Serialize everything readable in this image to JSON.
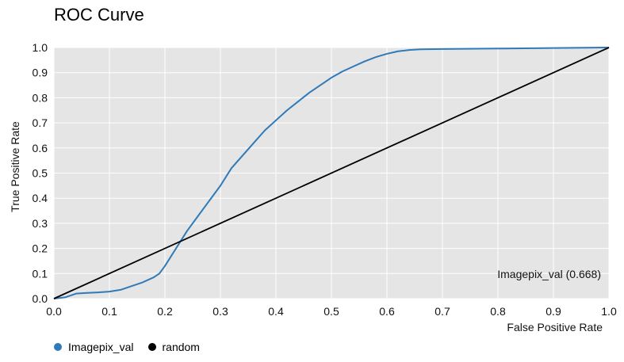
{
  "chart_data": {
    "type": "line",
    "title": "ROC Curve",
    "xlabel": "False Positive Rate",
    "ylabel": "True Positive Rate",
    "xlim": [
      0,
      1
    ],
    "ylim": [
      0,
      1
    ],
    "x_ticks": [
      "0.0",
      "0.1",
      "0.2",
      "0.3",
      "0.4",
      "0.5",
      "0.6",
      "0.7",
      "0.8",
      "0.9",
      "1.0"
    ],
    "y_ticks": [
      "0.0",
      "0.1",
      "0.2",
      "0.3",
      "0.4",
      "0.5",
      "0.6",
      "0.7",
      "0.8",
      "0.9",
      "1.0"
    ],
    "grid": true,
    "background": "#e5e5e5",
    "series": [
      {
        "name": "Imagepix_val",
        "color": "#2f7ab8",
        "annotation": "Imagepix_val (0.668)",
        "x": [
          0.0,
          0.02,
          0.04,
          0.06,
          0.08,
          0.1,
          0.12,
          0.14,
          0.16,
          0.18,
          0.19,
          0.2,
          0.22,
          0.24,
          0.26,
          0.28,
          0.3,
          0.32,
          0.34,
          0.36,
          0.38,
          0.4,
          0.42,
          0.44,
          0.46,
          0.48,
          0.5,
          0.52,
          0.54,
          0.56,
          0.58,
          0.6,
          0.62,
          0.64,
          0.66,
          0.7,
          0.8,
          0.9,
          1.0
        ],
        "y": [
          0.0,
          0.005,
          0.02,
          0.023,
          0.025,
          0.028,
          0.035,
          0.05,
          0.065,
          0.085,
          0.1,
          0.13,
          0.2,
          0.27,
          0.33,
          0.39,
          0.45,
          0.52,
          0.57,
          0.62,
          0.67,
          0.71,
          0.75,
          0.785,
          0.82,
          0.85,
          0.88,
          0.905,
          0.925,
          0.945,
          0.962,
          0.975,
          0.985,
          0.99,
          0.993,
          0.994,
          0.996,
          0.998,
          1.0
        ]
      },
      {
        "name": "random",
        "color": "#000000",
        "x": [
          0.0,
          1.0
        ],
        "y": [
          0.0,
          1.0
        ]
      }
    ],
    "legend_position": "bottom-left"
  }
}
